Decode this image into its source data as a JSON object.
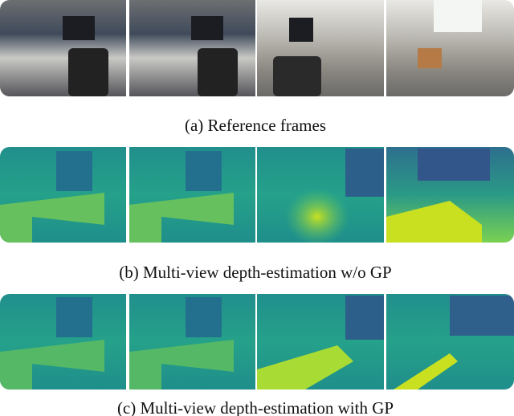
{
  "rows": [
    {
      "caption": "(a) Reference frames"
    },
    {
      "caption": "(b) Multi-view depth-estimation w/o GP"
    },
    {
      "caption": "(c) Multi-view depth-estimation with GP"
    }
  ]
}
